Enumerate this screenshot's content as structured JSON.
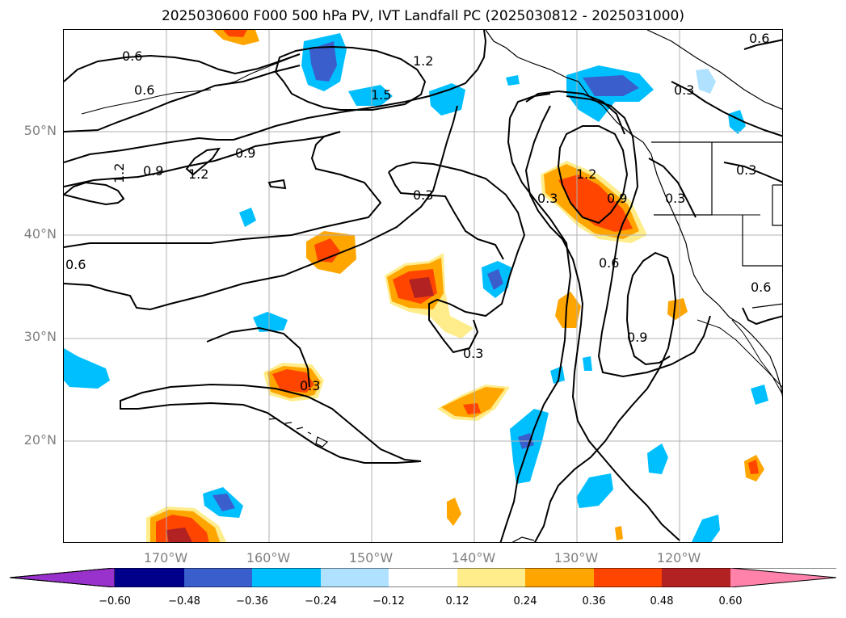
{
  "title": "2025030600 F000 500 hPa PV, IVT Landfall PC (2025030812 - 2025031000)",
  "lat_labels": [
    "50°N",
    "40°N",
    "30°N",
    "20°N"
  ],
  "lon_labels": [
    "170°W",
    "160°W",
    "150°W",
    "140°W",
    "130°W",
    "120°W"
  ],
  "colorbar": {
    "ticks": [
      "−0.60",
      "−0.48",
      "−0.36",
      "−0.24",
      "−0.12",
      "0.12",
      "0.24",
      "0.36",
      "0.48",
      "0.60"
    ],
    "colors": [
      "#9932cc",
      "#00008b",
      "#3a5fcd",
      "#00bfff",
      "#b0e2ff",
      "#ffffff",
      "#ffec8b",
      "#ffa500",
      "#ff4500",
      "#b22222",
      "#ff82ab"
    ]
  },
  "contour_labels": [
    "0.6",
    "0.6",
    "1.2",
    "0.9",
    "1.2",
    "0.9",
    "1.2",
    "1.5",
    "0.3",
    "0.6",
    "1.2",
    "0.9",
    "0.3",
    "0.6",
    "0.3",
    "0.9",
    "0.3",
    "0.3",
    "0.3",
    "0.3",
    "0.6",
    "0.6"
  ],
  "colors": {
    "grid": "#b0b0b0",
    "coast": "#000000",
    "contour": "#000000",
    "label_gray": "#808080"
  }
}
